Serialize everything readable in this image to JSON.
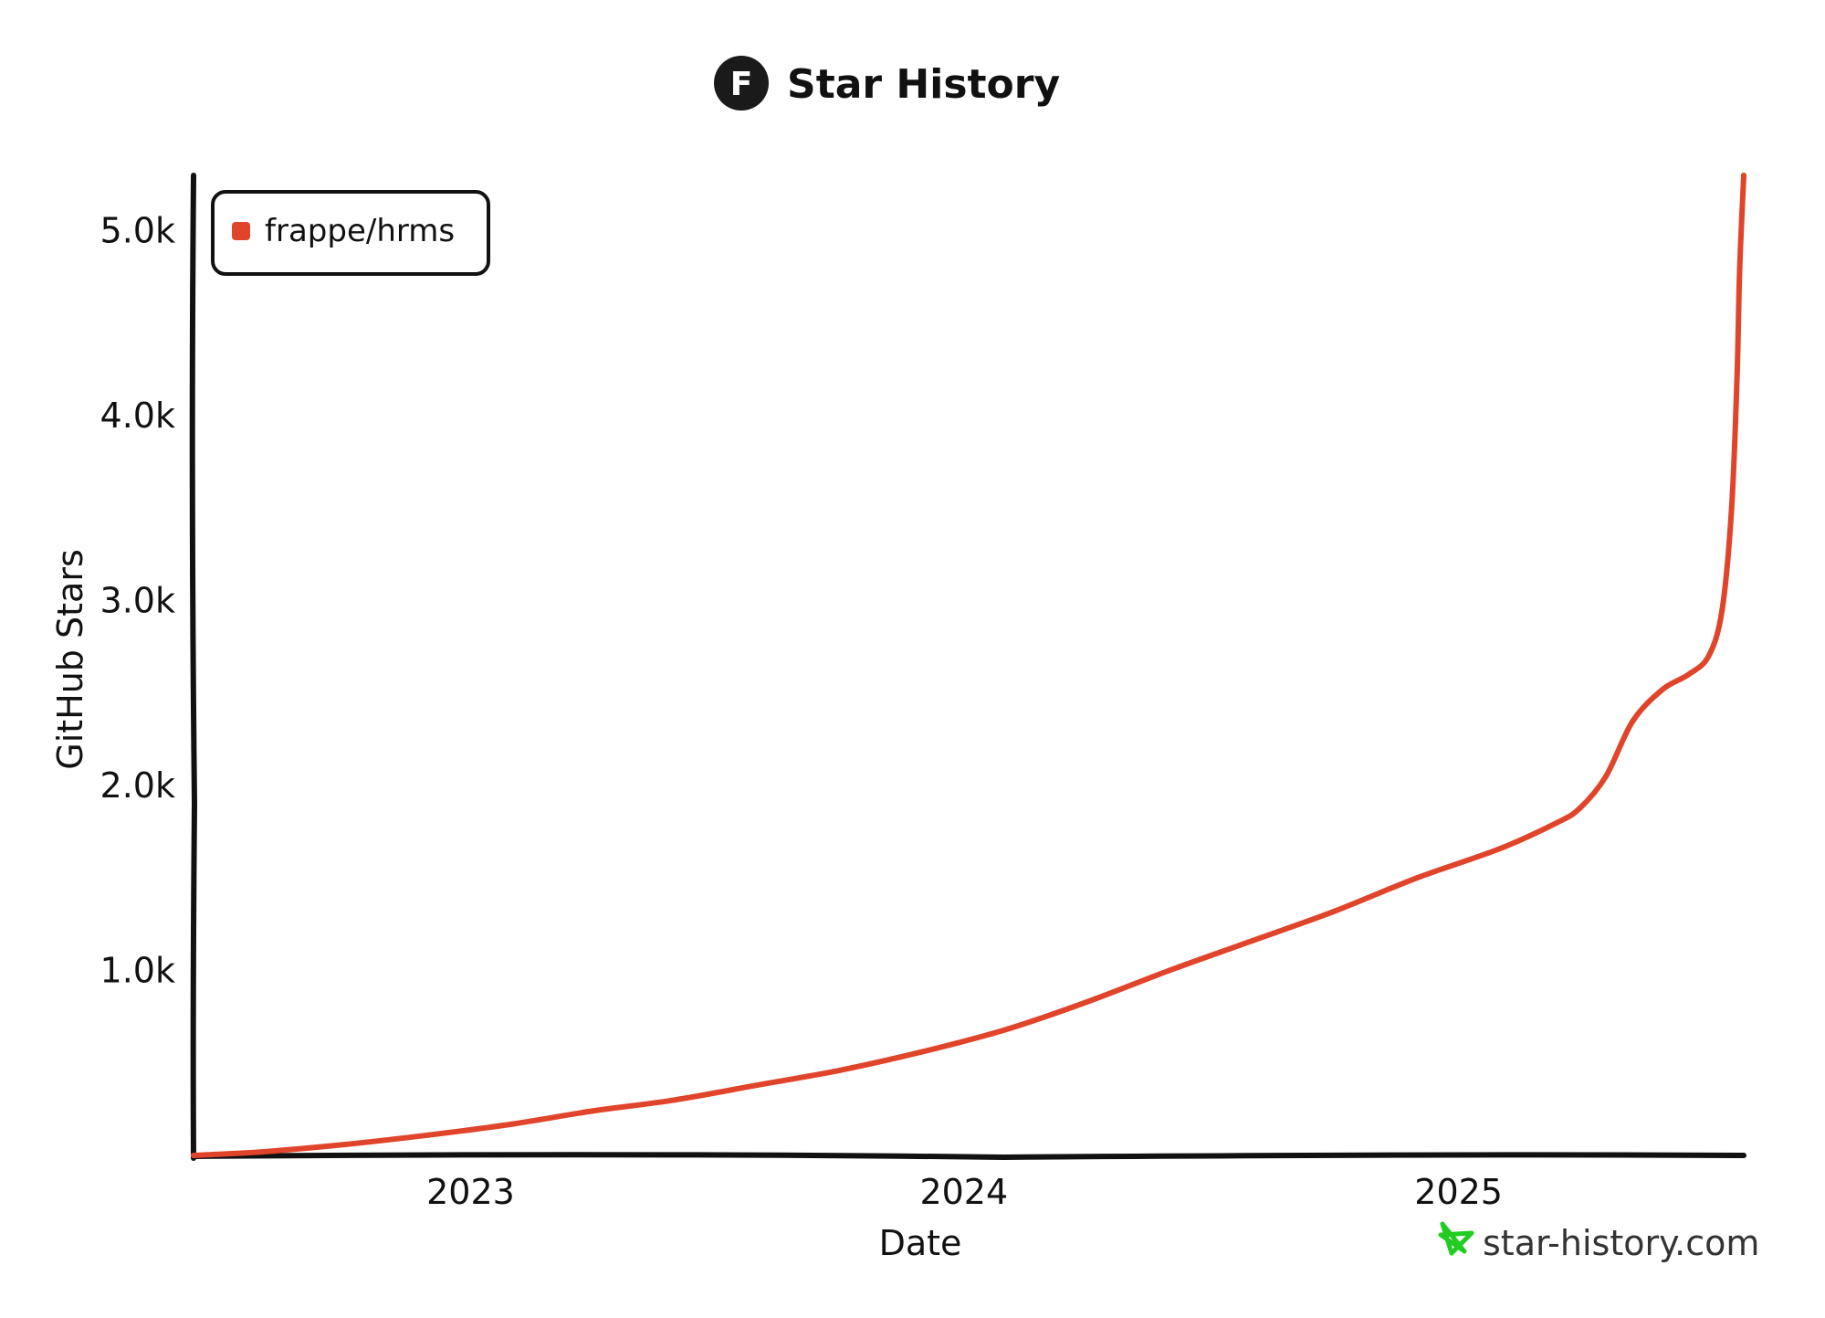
{
  "header": {
    "title": "Star History",
    "logo_letter": "F"
  },
  "watermark": {
    "text": "star-history.com",
    "icon": "star-icon",
    "color": "#22cc22"
  },
  "chart_data": {
    "type": "line",
    "title": "Star History",
    "xlabel": "Date",
    "ylabel": "GitHub Stars",
    "x_ticks": [
      "2023",
      "2024",
      "2025"
    ],
    "y_ticks": [
      "1.0k",
      "2.0k",
      "3.0k",
      "4.0k",
      "5.0k"
    ],
    "y_tick_values": [
      1000,
      2000,
      3000,
      4000,
      5000
    ],
    "ylim": [
      0,
      5300
    ],
    "xlim": [
      "2022-06-10",
      "2025-07-31"
    ],
    "grid": false,
    "legend_position": "top-left",
    "series": [
      {
        "name": "frappe/hrms",
        "color": "#e0442a",
        "x": [
          "2022-06-10",
          "2022-08-01",
          "2022-10-01",
          "2022-12-01",
          "2023-02-01",
          "2023-04-01",
          "2023-06-01",
          "2023-08-01",
          "2023-10-01",
          "2023-12-01",
          "2024-02-01",
          "2024-04-01",
          "2024-06-01",
          "2024-08-01",
          "2024-10-01",
          "2024-12-01",
          "2025-02-01",
          "2025-03-15",
          "2025-04-01",
          "2025-04-20",
          "2025-05-10",
          "2025-06-01",
          "2025-06-20",
          "2025-07-05",
          "2025-07-15",
          "2025-07-22",
          "2025-07-26",
          "2025-07-28",
          "2025-07-31"
        ],
        "values": [
          0,
          20,
          60,
          110,
          170,
          240,
          300,
          380,
          460,
          560,
          680,
          830,
          1000,
          1160,
          1320,
          1500,
          1660,
          1800,
          1880,
          2050,
          2350,
          2520,
          2600,
          2700,
          2950,
          3500,
          4200,
          4800,
          5300
        ]
      }
    ]
  }
}
